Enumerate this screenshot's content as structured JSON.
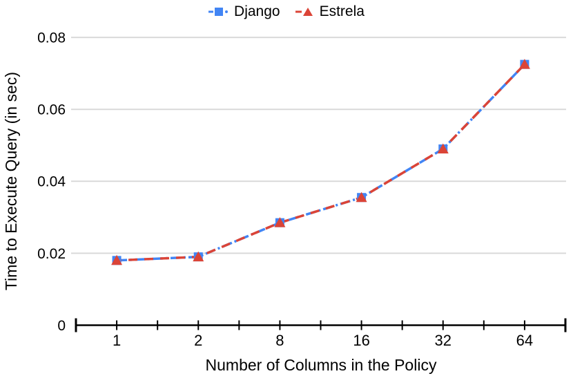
{
  "chart_data": {
    "type": "line",
    "title": "",
    "xlabel": "Number of Columns in the Policy",
    "ylabel": "Time to Execute Query (in sec)",
    "categories": [
      "1",
      "2",
      "8",
      "16",
      "32",
      "64"
    ],
    "series": [
      {
        "name": "Django",
        "color": "#4285F4",
        "marker": "square",
        "line_style": "dash-dot",
        "values": [
          0.018,
          0.019,
          0.0285,
          0.0355,
          0.049,
          0.0725
        ]
      },
      {
        "name": "Estrela",
        "color": "#DB4437",
        "marker": "triangle",
        "line_style": "dashed",
        "values": [
          0.018,
          0.019,
          0.0285,
          0.0355,
          0.049,
          0.0725
        ]
      }
    ],
    "ylim": [
      0,
      0.08
    ],
    "ytick_values": [
      0,
      0.02,
      0.04,
      0.06,
      0.08
    ],
    "ytick_labels": [
      "0",
      "0.02",
      "0.04",
      "0.06",
      "0.08"
    ],
    "grid": "horizontal-only",
    "legend_position": "top-center",
    "colors": {
      "background": "#ffffff",
      "gridline": "#d9d9d9",
      "axis": "#000000",
      "text": "#000000"
    }
  }
}
